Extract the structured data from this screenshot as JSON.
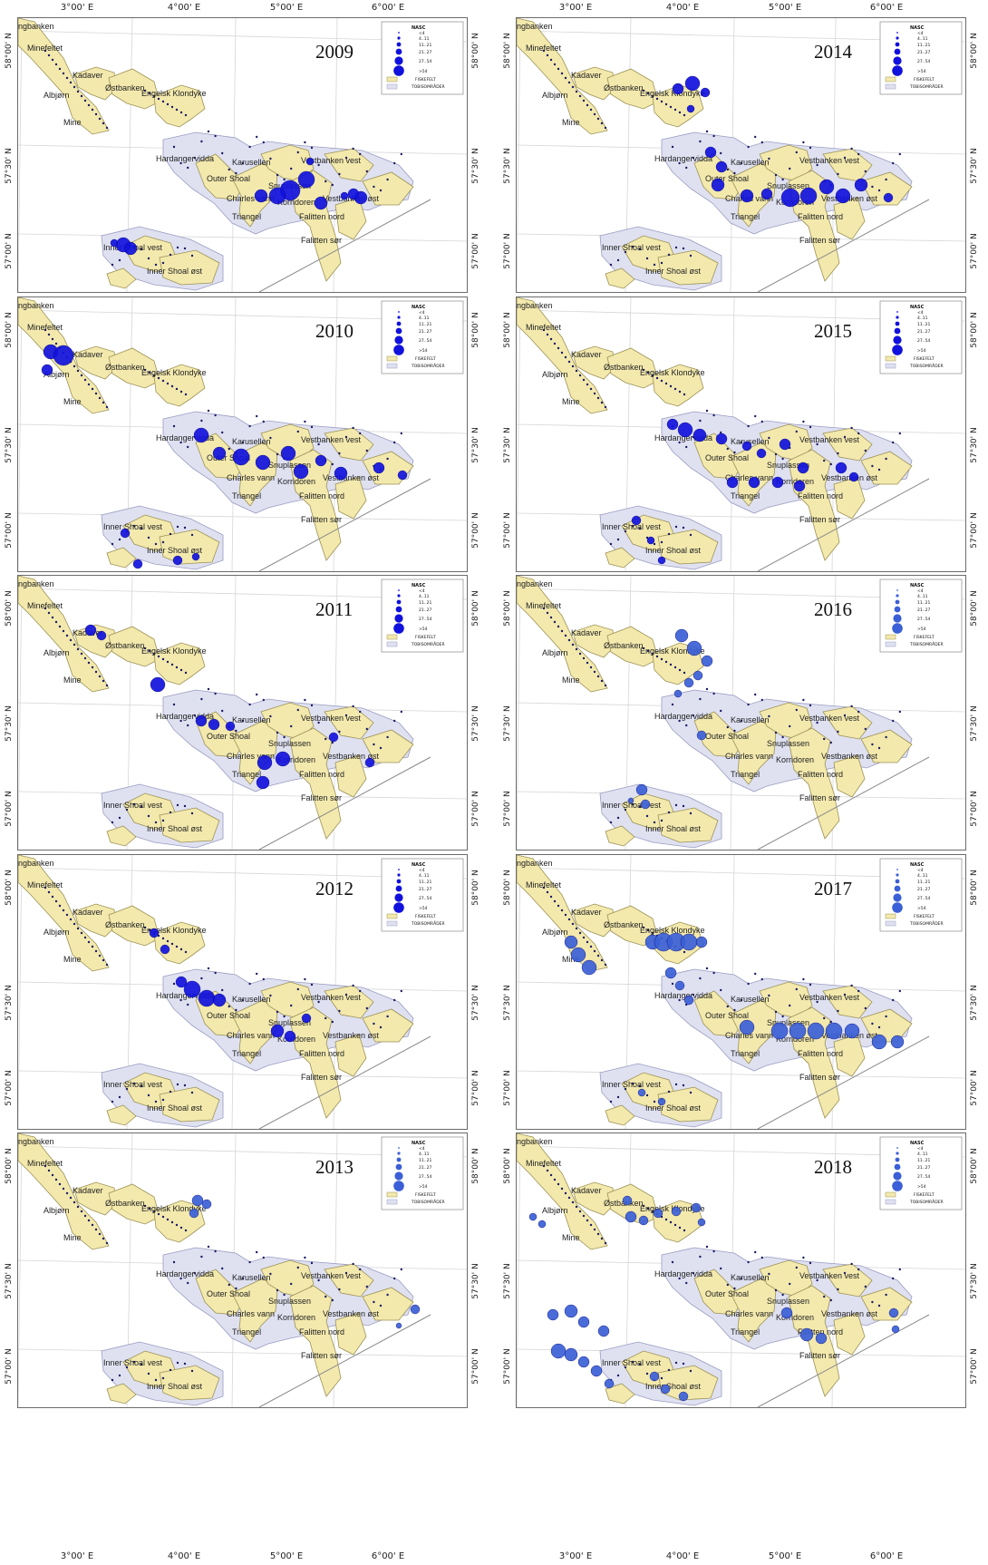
{
  "colors": {
    "fishing_ground_fill": "#f3e9ad",
    "fishing_ground_stroke": "#9c9256",
    "sandeel_area_fill": "#dfe1f1",
    "sandeel_area_stroke": "#9a9cc0",
    "marker_dark": "#1111dd",
    "marker_light": "#3b5fd6"
  },
  "axes": {
    "x_ticks": [
      "3°00' E",
      "4°00' E",
      "5°00' E",
      "6°00' E"
    ],
    "y_ticks": [
      "58°00' N",
      "57°30' N",
      "57°00' N"
    ]
  },
  "legend": {
    "title": "NASC",
    "classes": [
      "<4",
      "4..11",
      "11..21",
      "21..27",
      "27..54",
      ">54"
    ],
    "fishing_ground_label": "FISKEFELT",
    "sandeel_area_label": "TOBISOMRÅDER"
  },
  "area_labels": [
    "ngbanken",
    "Minefeltet",
    "Kadaver",
    "Albjørn",
    "Mine",
    "Østbanken",
    "Engelsk Klondyke",
    "Hardangervidda",
    "Karusellen",
    "Outer Shoal",
    "Vestbanken vest",
    "Snuplassen",
    "Charles vann",
    "Korridoren",
    "Vestbanken øst",
    "Triangel",
    "Falitten nord",
    "Falitten sør",
    "Inner Shoal vest",
    "Inner Shoal øst"
  ],
  "panels": [
    {
      "year": "2009",
      "marker_style": "dark"
    },
    {
      "year": "2014",
      "marker_style": "dark"
    },
    {
      "year": "2010",
      "marker_style": "dark"
    },
    {
      "year": "2015",
      "marker_style": "dark"
    },
    {
      "year": "2011",
      "marker_style": "dark"
    },
    {
      "year": "2016",
      "marker_style": "light"
    },
    {
      "year": "2012",
      "marker_style": "dark"
    },
    {
      "year": "2017",
      "marker_style": "light"
    },
    {
      "year": "2013",
      "marker_style": "light"
    },
    {
      "year": "2018",
      "marker_style": "light"
    }
  ]
}
